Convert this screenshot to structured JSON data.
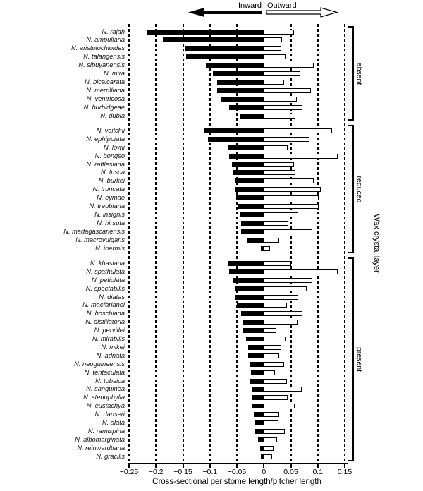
{
  "figure": {
    "legend": {
      "inward_label": "Inward",
      "outward_label": "Outward"
    },
    "right_axis_label": "Wax crystal layer"
  },
  "chart_data": {
    "type": "bar",
    "orientation": "horizontal-diverging",
    "title": "",
    "xlabel": "Cross-sectional peristome length/pitcher length",
    "ylabel": "",
    "xlim": [
      -0.25,
      0.15
    ],
    "xticks": [
      -0.25,
      -0.2,
      -0.15,
      -0.1,
      -0.05,
      0,
      0.05,
      0.1,
      0.15
    ],
    "xtick_labels": [
      "−0.25",
      "−0.2",
      "−0.15",
      "−0.1",
      "−0.05",
      "0",
      "0.05",
      "0.1",
      "0.15"
    ],
    "grid": "dashed vertical lines at every tick, solid line at 0",
    "series_names": [
      "Inward (black bars, negative)",
      "Outward (white bars, positive)"
    ],
    "groups": [
      {
        "label": "absent",
        "species": [
          {
            "name": "N. rajah",
            "inward": -0.217,
            "outward": 0.056
          },
          {
            "name": "N. ampullaria",
            "inward": -0.187,
            "outward": 0.034
          },
          {
            "name": "N. aristolochioides",
            "inward": -0.146,
            "outward": 0.033
          },
          {
            "name": "N. talangensis",
            "inward": -0.144,
            "outward": 0.04
          },
          {
            "name": "N. sibuyanensis",
            "inward": -0.107,
            "outward": 0.093
          },
          {
            "name": "N. mira",
            "inward": -0.094,
            "outward": 0.067
          },
          {
            "name": "N. bicalcarata",
            "inward": -0.087,
            "outward": 0.038
          },
          {
            "name": "N. merrilliana",
            "inward": -0.086,
            "outward": 0.087
          },
          {
            "name": "N. ventricosa",
            "inward": -0.079,
            "outward": 0.061
          },
          {
            "name": "N. burbidgeae",
            "inward": -0.065,
            "outward": 0.072
          },
          {
            "name": "N. dubia",
            "inward": -0.044,
            "outward": 0.058
          }
        ]
      },
      {
        "label": "reduced",
        "species": [
          {
            "name": "N. veitchii",
            "inward": -0.11,
            "outward": 0.127
          },
          {
            "name": "N. ephippiata",
            "inward": -0.103,
            "outward": 0.085
          },
          {
            "name": "N. lowii",
            "inward": -0.067,
            "outward": 0.044
          },
          {
            "name": "N. bongso",
            "inward": -0.064,
            "outward": 0.137
          },
          {
            "name": "N. rafflesiana",
            "inward": -0.059,
            "outward": 0.056
          },
          {
            "name": "N. fusca",
            "inward": -0.057,
            "outward": 0.058
          },
          {
            "name": "N. burkei",
            "inward": -0.053,
            "outward": 0.092
          },
          {
            "name": "N. truncata",
            "inward": -0.052,
            "outward": 0.106
          },
          {
            "name": "N. eymae",
            "inward": -0.051,
            "outward": 0.101
          },
          {
            "name": "N. treubiana",
            "inward": -0.048,
            "outward": 0.102
          },
          {
            "name": "N. insignis",
            "inward": -0.043,
            "outward": 0.064
          },
          {
            "name": "N. hirsuta",
            "inward": -0.042,
            "outward": 0.045
          },
          {
            "name": "N. madagascariensis",
            "inward": -0.042,
            "outward": 0.09
          },
          {
            "name": "N. macrovulgaris",
            "inward": -0.032,
            "outward": 0.028
          },
          {
            "name": "N. inermis",
            "inward": -0.005,
            "outward": 0.011
          }
        ]
      },
      {
        "label": "present",
        "species": [
          {
            "name": "N. khasiana",
            "inward": -0.067,
            "outward": 0.05
          },
          {
            "name": "N. spathulata",
            "inward": -0.064,
            "outward": 0.137
          },
          {
            "name": "N. petiolata",
            "inward": -0.058,
            "outward": 0.09
          },
          {
            "name": "N. spectabilis",
            "inward": -0.053,
            "outward": 0.08
          },
          {
            "name": "N. diatas",
            "inward": -0.052,
            "outward": 0.064
          },
          {
            "name": "N. macfarlanei",
            "inward": -0.05,
            "outward": 0.043
          },
          {
            "name": "N. boschiana",
            "inward": -0.042,
            "outward": 0.071
          },
          {
            "name": "N. distillatoria",
            "inward": -0.04,
            "outward": 0.063
          },
          {
            "name": "N. pervillei",
            "inward": -0.04,
            "outward": 0.023
          },
          {
            "name": "N. mirabilis",
            "inward": -0.033,
            "outward": 0.04
          },
          {
            "name": "N. mikei",
            "inward": -0.029,
            "outward": 0.033
          },
          {
            "name": "N. adnata",
            "inward": -0.029,
            "outward": 0.028
          },
          {
            "name": "N. neoguineensis",
            "inward": -0.027,
            "outward": 0.037
          },
          {
            "name": "N. tentaculata",
            "inward": -0.024,
            "outward": 0.021
          },
          {
            "name": "N. tobaica",
            "inward": -0.026,
            "outward": 0.043
          },
          {
            "name": "N. sanguinea",
            "inward": -0.023,
            "outward": 0.07
          },
          {
            "name": "N. stenophylla",
            "inward": -0.021,
            "outward": 0.044
          },
          {
            "name": "N. eustachya",
            "inward": -0.021,
            "outward": 0.057
          },
          {
            "name": "N. danseri",
            "inward": -0.018,
            "outward": 0.028
          },
          {
            "name": "N. alata",
            "inward": -0.017,
            "outward": 0.027
          },
          {
            "name": "N. ramispina",
            "inward": -0.016,
            "outward": 0.039
          },
          {
            "name": "N. albomarginata",
            "inward": -0.011,
            "outward": 0.025
          },
          {
            "name": "N. reinwardtiana",
            "inward": -0.007,
            "outward": 0.018
          },
          {
            "name": "N. gracilis",
            "inward": -0.006,
            "outward": 0.016
          }
        ]
      }
    ]
  }
}
